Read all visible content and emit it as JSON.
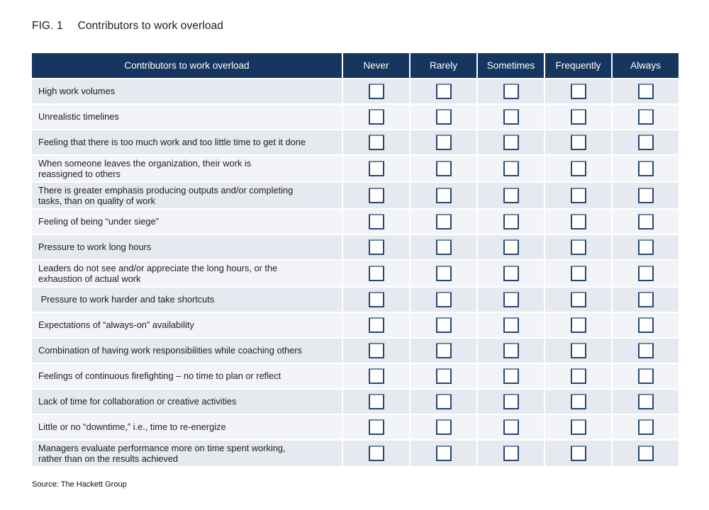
{
  "page": {
    "fig_label": "FIG. 1",
    "title": "Contributors to work overload",
    "source": "Source: The Hackett Group"
  },
  "table": {
    "header": {
      "label": "Contributors to work overload",
      "options": [
        "Never",
        "Rarely",
        "Sometimes",
        "Frequently",
        "Always"
      ]
    },
    "rows": [
      {
        "label": "High work volumes"
      },
      {
        "label": "Unrealistic timelines"
      },
      {
        "label": "Feeling that there is too much work and too little time to get it done"
      },
      {
        "label": "When someone leaves the organization, their work is\nreassigned to others"
      },
      {
        "label": "There is greater emphasis producing outputs and/or completing\ntasks, than on quality of work"
      },
      {
        "label": "Feeling of being “under siege”"
      },
      {
        "label": "Pressure to work long hours"
      },
      {
        "label": "Leaders do not see and/or appreciate the long hours, or the\nexhaustion of actual work"
      },
      {
        "label": " Pressure to work harder and take shortcuts"
      },
      {
        "label": "Expectations of “always-on” availability"
      },
      {
        "label": "Combination of having work responsibilities while coaching others"
      },
      {
        "label": "Feelings of continuous firefighting – no time to plan or reflect"
      },
      {
        "label": "Lack of time for collaboration or creative activities"
      },
      {
        "label": "Little or no “downtime,” i.e., time to re-energize"
      },
      {
        "label": "Managers evaluate performance more on time spent working,\nrather than on the results achieved"
      }
    ]
  },
  "colors": {
    "header_bg": "#16355f",
    "row_odd": "#e6e9ef",
    "row_even": "#f2f4f8",
    "checkbox_border": "#27476f",
    "separator": "#ffffff"
  }
}
